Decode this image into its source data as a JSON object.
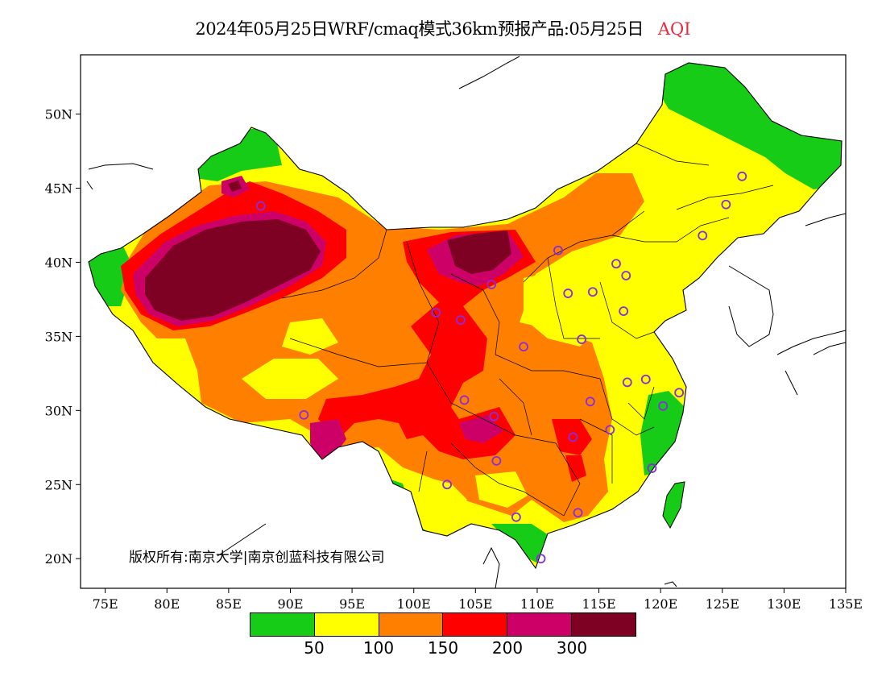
{
  "title": {
    "main": "2024年05月25日WRF/cmaq模式36km预报产品:05月25日",
    "variable": "AQI",
    "variable_color": "#e8293d"
  },
  "axes": {
    "x_ticks": [
      "75E",
      "80E",
      "85E",
      "90E",
      "95E",
      "100E",
      "105E",
      "110E",
      "115E",
      "120E",
      "125E",
      "130E",
      "135E"
    ],
    "x_values": [
      75,
      80,
      85,
      90,
      95,
      100,
      105,
      110,
      115,
      120,
      125,
      130,
      135
    ],
    "y_ticks": [
      "50N",
      "45N",
      "40N",
      "35N",
      "30N",
      "25N",
      "20N"
    ],
    "y_values": [
      50,
      45,
      40,
      35,
      30,
      25,
      20
    ],
    "lon_range": [
      73,
      135
    ],
    "lat_range": [
      18,
      54
    ]
  },
  "copyright": "版权所有:南京大学|南京创蓝科技有限公司",
  "legend": {
    "colors": [
      "#16cc16",
      "#ffff00",
      "#ff7f00",
      "#ff0000",
      "#cc0066",
      "#7e0023"
    ],
    "labels": [
      "50",
      "100",
      "150",
      "200",
      "300"
    ]
  },
  "stations": [
    {
      "lon": 87.6,
      "lat": 43.8
    },
    {
      "lon": 91.1,
      "lat": 29.7
    },
    {
      "lon": 101.8,
      "lat": 36.6
    },
    {
      "lon": 103.8,
      "lat": 36.1
    },
    {
      "lon": 106.3,
      "lat": 38.5
    },
    {
      "lon": 111.7,
      "lat": 40.8
    },
    {
      "lon": 104.1,
      "lat": 30.7
    },
    {
      "lon": 106.5,
      "lat": 29.6
    },
    {
      "lon": 102.7,
      "lat": 25.0
    },
    {
      "lon": 106.7,
      "lat": 26.6
    },
    {
      "lon": 108.9,
      "lat": 34.3
    },
    {
      "lon": 112.5,
      "lat": 37.9
    },
    {
      "lon": 114.5,
      "lat": 38.0
    },
    {
      "lon": 116.4,
      "lat": 39.9
    },
    {
      "lon": 117.2,
      "lat": 39.1
    },
    {
      "lon": 117.0,
      "lat": 36.7
    },
    {
      "lon": 113.6,
      "lat": 34.8
    },
    {
      "lon": 114.3,
      "lat": 30.6
    },
    {
      "lon": 112.9,
      "lat": 28.2
    },
    {
      "lon": 115.9,
      "lat": 28.7
    },
    {
      "lon": 117.3,
      "lat": 31.9
    },
    {
      "lon": 118.8,
      "lat": 32.1
    },
    {
      "lon": 120.2,
      "lat": 30.3
    },
    {
      "lon": 121.5,
      "lat": 31.2
    },
    {
      "lon": 119.3,
      "lat": 26.1
    },
    {
      "lon": 113.3,
      "lat": 23.1
    },
    {
      "lon": 108.3,
      "lat": 22.8
    },
    {
      "lon": 110.3,
      "lat": 20.0
    },
    {
      "lon": 123.4,
      "lat": 41.8
    },
    {
      "lon": 125.3,
      "lat": 43.9
    },
    {
      "lon": 126.6,
      "lat": 45.8
    }
  ]
}
